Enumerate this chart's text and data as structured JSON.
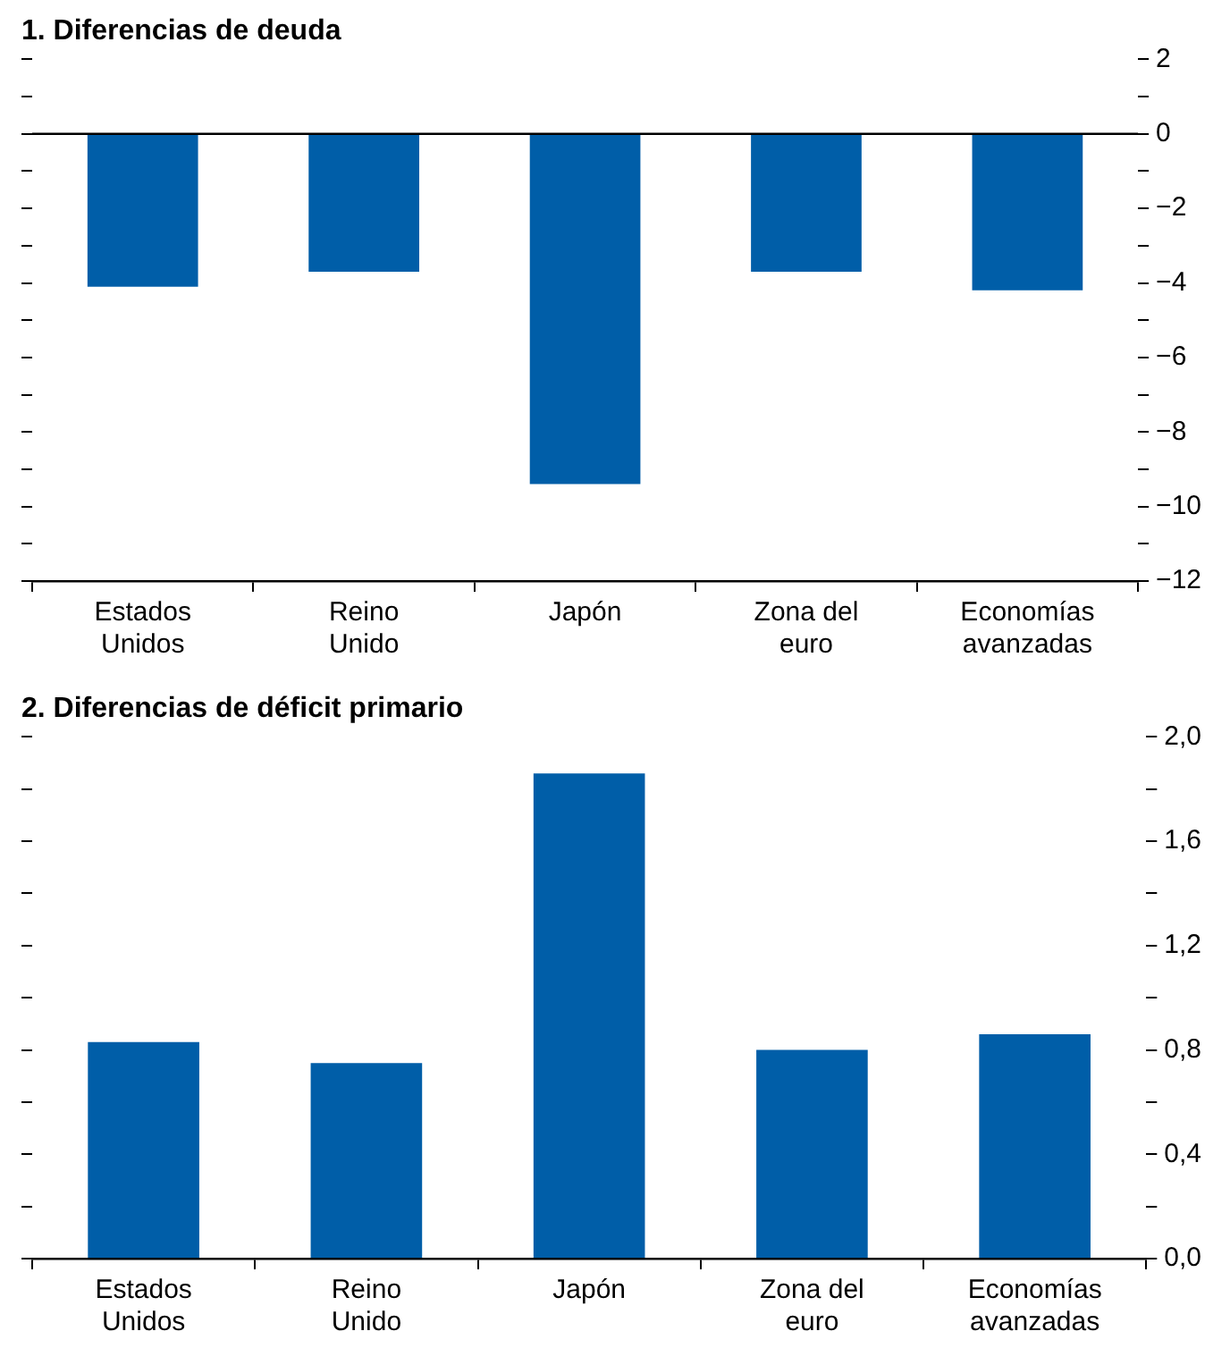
{
  "chart_data": [
    {
      "type": "bar",
      "title": "1. Diferencias de deuda",
      "categories": [
        "Estados Unidos",
        "Reino Unido",
        "Japón",
        "Zona del euro",
        "Economías avanzadas"
      ],
      "values": [
        -4.1,
        -3.7,
        -9.4,
        -3.7,
        -4.2
      ],
      "color": "#005ea8",
      "ylim": [
        -12,
        2
      ],
      "yticks": [
        -12,
        {
          "value": -11,
          "label": null
        },
        -10,
        {
          "value": -9,
          "label": null
        },
        -8,
        {
          "value": -7,
          "label": null
        },
        -6,
        {
          "value": -5,
          "label": null
        },
        -4,
        {
          "value": -3,
          "label": null
        },
        -2,
        {
          "value": -1,
          "label": null
        },
        0,
        {
          "value": 1,
          "label": null
        },
        2
      ],
      "ref_lines": [
        {
          "axis": "y",
          "value": 0,
          "color": "#000000"
        }
      ],
      "grid": false,
      "legend": false
    },
    {
      "type": "bar",
      "title": "2. Diferencias de déficit primario",
      "categories": [
        "Estados Unidos",
        "Reino Unido",
        "Japón",
        "Zona del euro",
        "Economías avanzadas"
      ],
      "values": [
        0.83,
        0.75,
        1.86,
        0.8,
        0.86
      ],
      "color": "#005ea8",
      "ylim": [
        0,
        2
      ],
      "yticks": [
        {
          "value": 0,
          "label": "0,0"
        },
        {
          "value": 0.2,
          "label": null
        },
        {
          "value": 0.4,
          "label": "0,4"
        },
        {
          "value": 0.6,
          "label": null
        },
        {
          "value": 0.8,
          "label": "0,8"
        },
        {
          "value": 1,
          "label": null
        },
        {
          "value": 1.2,
          "label": "1,2"
        },
        {
          "value": 1.4,
          "label": null
        },
        {
          "value": 1.6,
          "label": "1,6"
        },
        {
          "value": 1.8,
          "label": null
        },
        {
          "value": 2,
          "label": "2,0"
        }
      ],
      "grid": false,
      "legend": false
    }
  ]
}
